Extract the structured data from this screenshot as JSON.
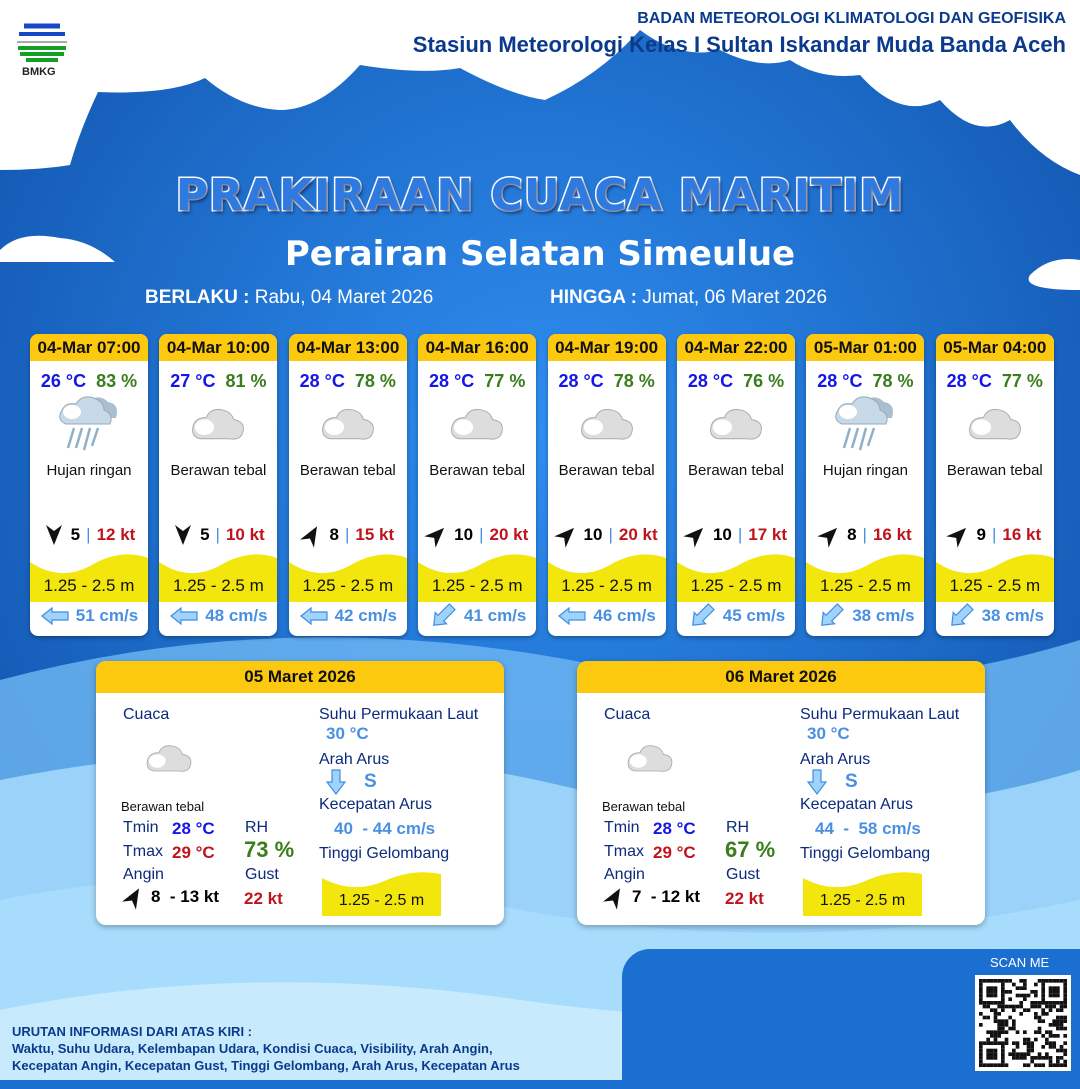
{
  "header": {
    "org": "BADAN METEOROLOGI KLIMATOLOGI DAN GEOFISIKA",
    "station": "Stasiun Meteorologi Kelas I Sultan Iskandar Muda Banda Aceh",
    "logo_text": "BMKG"
  },
  "title": "PRAKIRAAN CUACA MARITIM",
  "subtitle": "Perairan Selatan Simeulue",
  "validity": {
    "from_label": "BERLAKU :",
    "from": "Rabu, 04 Maret 2026",
    "to_label": "HINGGA :",
    "to": "Jumat, 06 Maret 2026"
  },
  "colors": {
    "header_yellow": "#fcc90e",
    "temp": "#1515e8",
    "humidity": "#3a7d1c",
    "gust": "#c0141c",
    "current": "#4a90e2",
    "wave": "#f2e60c"
  },
  "forecasts": [
    {
      "time": "04-Mar 07:00",
      "temp": "26 °C",
      "rh": "83 %",
      "icon": "rain-cloud-icon",
      "cond": "Hujan ringan",
      "wind_dir_deg": 180,
      "wind": "5",
      "gust": "12 kt",
      "wave": "1.25 - 2.5 m",
      "current_dir_deg": 270,
      "current": "51 cm/s"
    },
    {
      "time": "04-Mar 10:00",
      "temp": "27 °C",
      "rh": "81 %",
      "icon": "cloud-icon",
      "cond": "Berawan tebal",
      "wind_dir_deg": 180,
      "wind": "5",
      "gust": "10 kt",
      "wave": "1.25 - 2.5 m",
      "current_dir_deg": 270,
      "current": "48 cm/s"
    },
    {
      "time": "04-Mar 13:00",
      "temp": "28 °C",
      "rh": "78 %",
      "icon": "cloud-icon",
      "cond": "Berawan tebal",
      "wind_dir_deg": 30,
      "wind": "8",
      "gust": "15 kt",
      "wave": "1.25 - 2.5 m",
      "current_dir_deg": 270,
      "current": "42 cm/s"
    },
    {
      "time": "04-Mar 16:00",
      "temp": "28 °C",
      "rh": "77 %",
      "icon": "cloud-icon",
      "cond": "Berawan tebal",
      "wind_dir_deg": 45,
      "wind": "10",
      "gust": "20 kt",
      "wave": "1.25 - 2.5 m",
      "current_dir_deg": 225,
      "current": "41 cm/s"
    },
    {
      "time": "04-Mar 19:00",
      "temp": "28 °C",
      "rh": "78 %",
      "icon": "cloud-icon",
      "cond": "Berawan tebal",
      "wind_dir_deg": 45,
      "wind": "10",
      "gust": "20 kt",
      "wave": "1.25 - 2.5 m",
      "current_dir_deg": 270,
      "current": "46 cm/s"
    },
    {
      "time": "04-Mar 22:00",
      "temp": "28 °C",
      "rh": "76 %",
      "icon": "cloud-icon",
      "cond": "Berawan tebal",
      "wind_dir_deg": 45,
      "wind": "10",
      "gust": "17 kt",
      "wave": "1.25 - 2.5 m",
      "current_dir_deg": 225,
      "current": "45 cm/s"
    },
    {
      "time": "05-Mar 01:00",
      "temp": "28 °C",
      "rh": "78 %",
      "icon": "rain-cloud-icon",
      "cond": "Hujan ringan",
      "wind_dir_deg": 45,
      "wind": "8",
      "gust": "16 kt",
      "wave": "1.25 - 2.5 m",
      "current_dir_deg": 225,
      "current": "38 cm/s"
    },
    {
      "time": "05-Mar 04:00",
      "temp": "28 °C",
      "rh": "77 %",
      "icon": "cloud-icon",
      "cond": "Berawan tebal",
      "wind_dir_deg": 45,
      "wind": "9",
      "gust": "16 kt",
      "wave": "1.25 - 2.5 m",
      "current_dir_deg": 225,
      "current": "38 cm/s"
    }
  ],
  "labels": {
    "cuaca": "Cuaca",
    "tmin": "Tmin",
    "tmax": "Tmax",
    "angin": "Angin",
    "rh": "RH",
    "gust": "Gust",
    "sst": "Suhu Permukaan Laut",
    "arah_arus": "Arah Arus",
    "kec_arus": "Kecepatan Arus",
    "tinggi": "Tinggi Gelombang"
  },
  "days": [
    {
      "date": "05 Maret 2026",
      "cond": "Berawan tebal",
      "icon": "cloud-icon",
      "tmin": "28 °C",
      "tmax": "29 °C",
      "rh": "73 %",
      "wind_dir_deg": 30,
      "wind": "8  - 13 kt",
      "gust": "22 kt",
      "sst": "30 °C",
      "current_dir": "S",
      "current": "40  - 44 cm/s",
      "wave": "1.25 - 2.5 m"
    },
    {
      "date": "06 Maret 2026",
      "cond": "Berawan tebal",
      "icon": "cloud-icon",
      "tmin": "28 °C",
      "tmax": "29 °C",
      "rh": "67 %",
      "wind_dir_deg": 30,
      "wind": "7  - 12 kt",
      "gust": "22 kt",
      "sst": "30 °C",
      "current_dir": "S",
      "current": "44  -  58 cm/s",
      "wave": "1.25 - 2.5 m"
    }
  ],
  "footer": {
    "note_title": "URUTAN INFORMASI DARI ATAS KIRI :",
    "note_line1": "Waktu, Suhu Udara, Kelembapan Udara, Kondisi Cuaca, Visibility, Arah Angin,",
    "note_line2": "Kecepatan Angin, Kecepatan Gust, Tinggi Gelombang, Arah Arus, Kecepatan Arus",
    "scan": "SCAN ME"
  }
}
